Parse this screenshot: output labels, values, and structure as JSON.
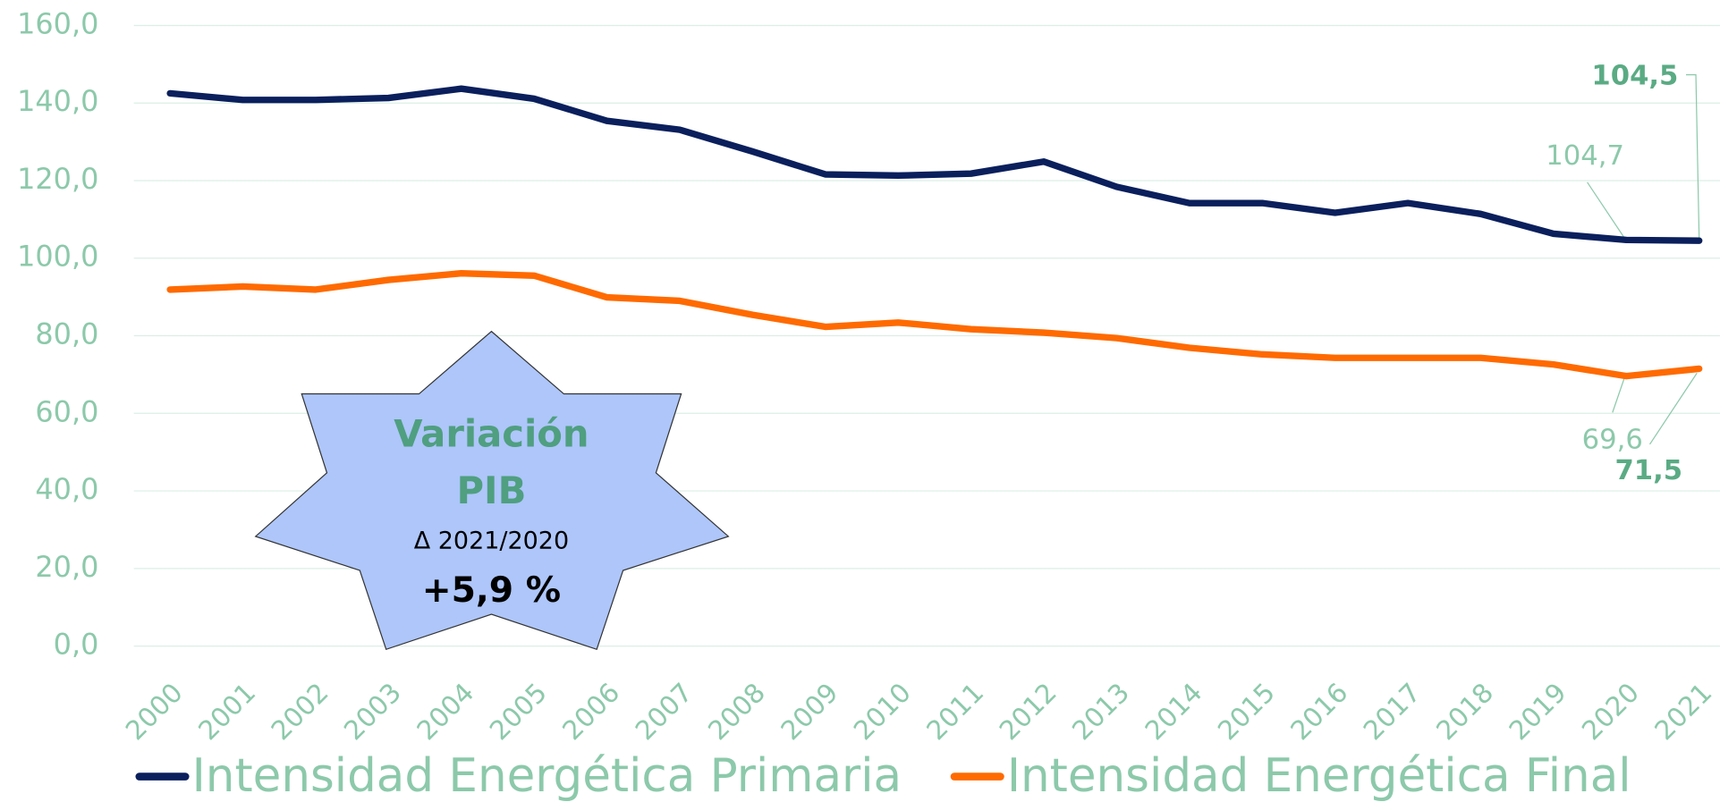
{
  "chart_data": {
    "type": "line",
    "categories": [
      "2000",
      "2001",
      "2002",
      "2003",
      "2004",
      "2005",
      "2006",
      "2007",
      "2008",
      "2009",
      "2010",
      "2011",
      "2012",
      "2013",
      "2014",
      "2015",
      "2016",
      "2017",
      "2018",
      "2019",
      "2020",
      "2021"
    ],
    "series": [
      {
        "name": "Intensidad Energética Primaria",
        "color": "#0a1f5c",
        "values": [
          142.5,
          140.8,
          140.8,
          141.3,
          143.7,
          141.1,
          135.4,
          133.1,
          127.5,
          121.6,
          121.3,
          121.8,
          124.9,
          118.4,
          114.2,
          114.2,
          111.7,
          114.2,
          111.4,
          106.3,
          104.7,
          104.5
        ],
        "value_labels": [
          null,
          null,
          null,
          null,
          null,
          null,
          null,
          null,
          null,
          null,
          null,
          null,
          null,
          null,
          null,
          null,
          null,
          null,
          null,
          null,
          "104,7",
          "104,5"
        ]
      },
      {
        "name": "Intensidad Energética Final",
        "color": "#ff6a00",
        "values": [
          91.9,
          92.7,
          91.9,
          94.4,
          96.1,
          95.5,
          89.9,
          89.0,
          85.4,
          82.3,
          83.4,
          81.7,
          80.8,
          79.4,
          76.9,
          75.2,
          74.3,
          74.3,
          74.3,
          72.6,
          69.6,
          71.5
        ],
        "value_labels": [
          null,
          null,
          null,
          null,
          null,
          null,
          null,
          null,
          null,
          null,
          null,
          null,
          null,
          null,
          null,
          null,
          null,
          null,
          null,
          null,
          "69,6",
          "71,5"
        ]
      }
    ],
    "ylim": [
      0,
      160
    ],
    "yticks": [
      {
        "value": 0,
        "label": "0,0"
      },
      {
        "value": 20,
        "label": "20,0"
      },
      {
        "value": 40,
        "label": "40,0"
      },
      {
        "value": 60,
        "label": "60,0"
      },
      {
        "value": 80,
        "label": "80,0"
      },
      {
        "value": 100,
        "label": "100,0"
      },
      {
        "value": 120,
        "label": "120,0"
      },
      {
        "value": 140,
        "label": "140,0"
      },
      {
        "value": 160,
        "label": "160,0"
      }
    ],
    "grid": true,
    "legend": "bottom",
    "annotation": {
      "title1": "Variación",
      "title2": "PIB",
      "subtitle": "Δ 2021/2020",
      "value": "+5,9 %"
    }
  }
}
